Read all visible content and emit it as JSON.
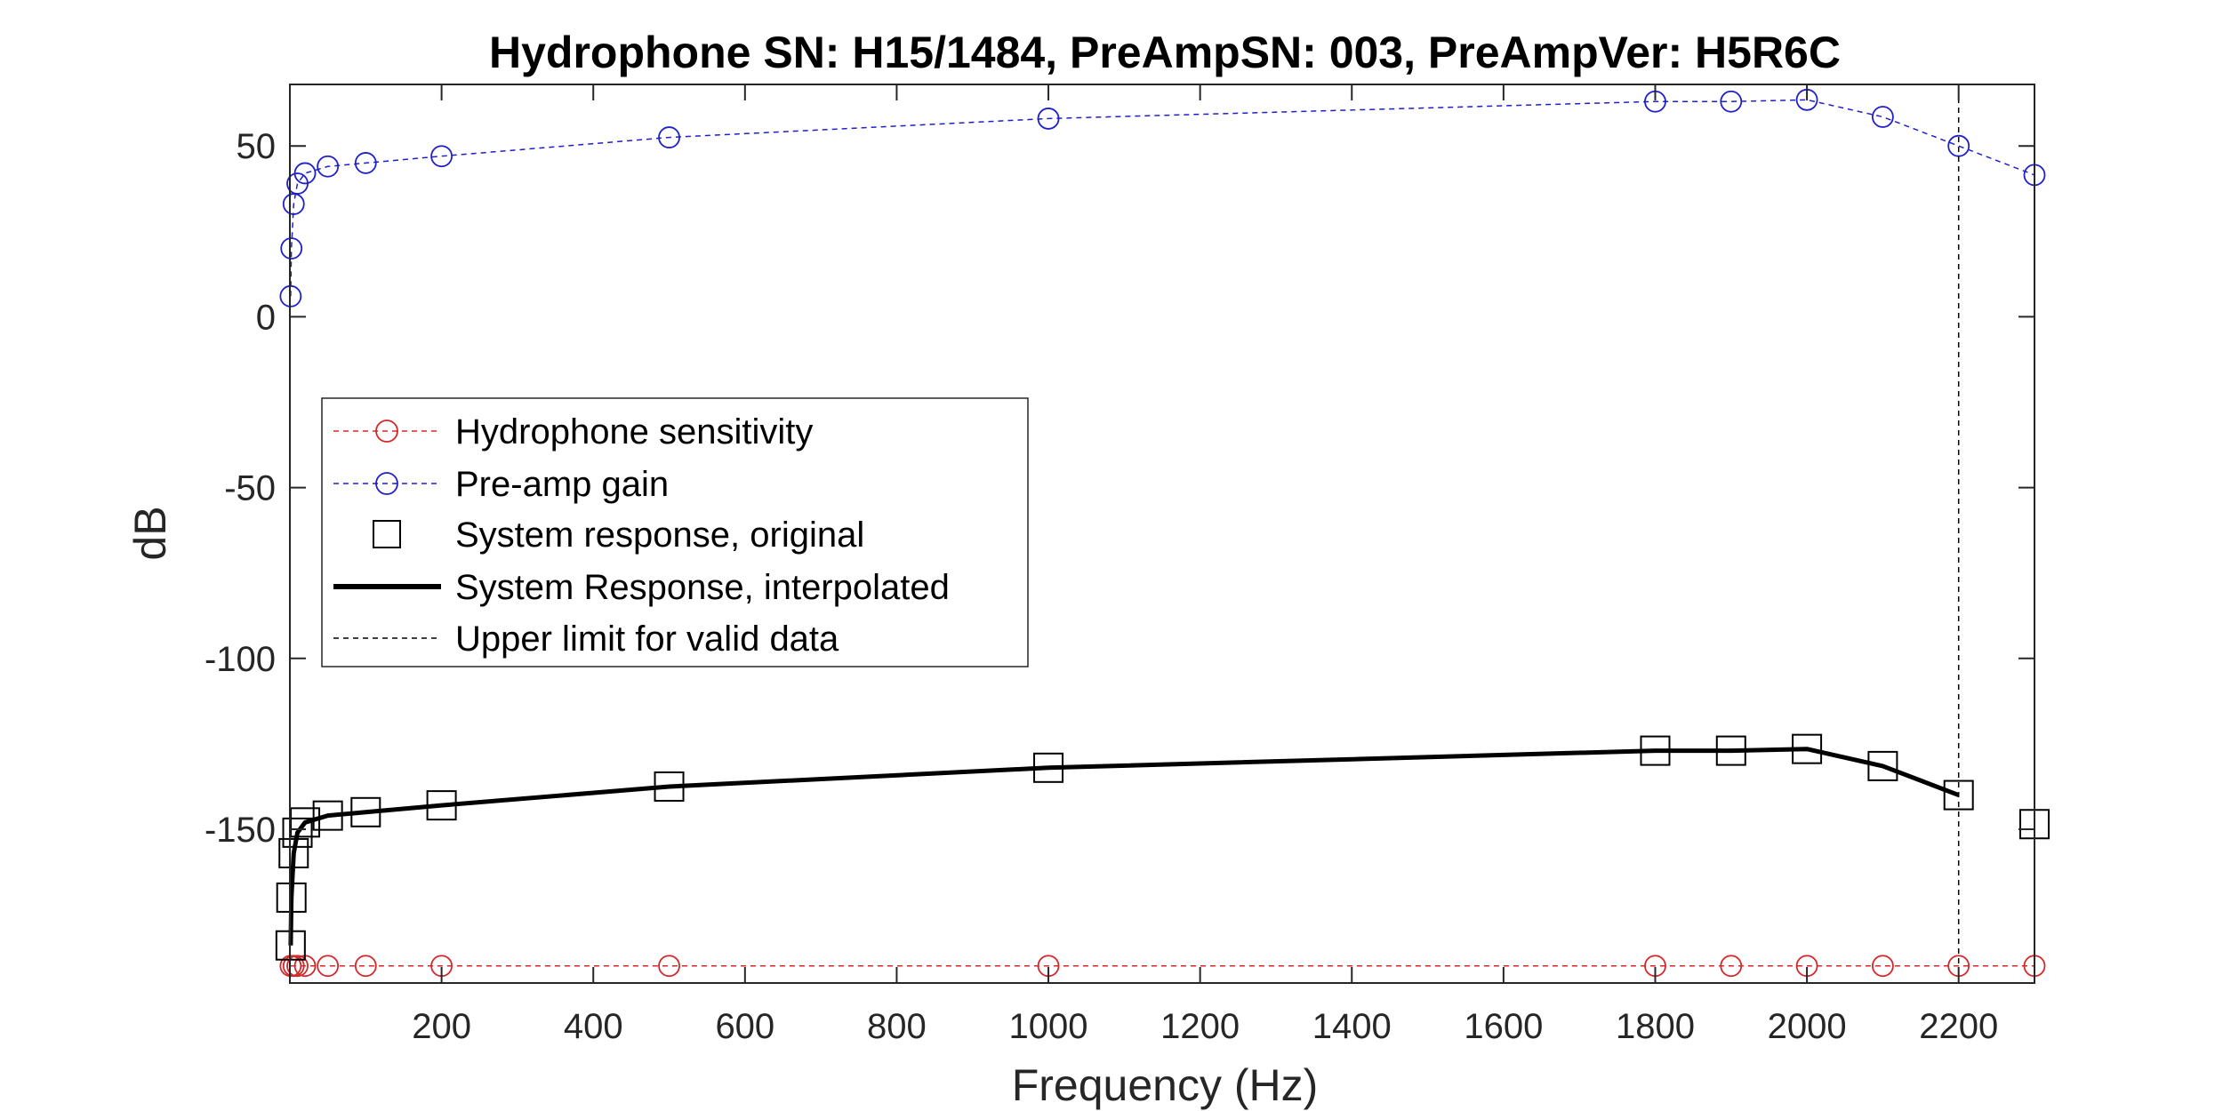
{
  "chart_data": {
    "type": "line",
    "title": "Hydrophone SN: H15/1484, PreAmpSN: 003, PreAmpVer: H5R6C",
    "xlabel": "Frequency (Hz)",
    "ylabel": "dB",
    "xlim": [
      0,
      2300
    ],
    "ylim": [
      -195,
      68
    ],
    "xticks": [
      200,
      400,
      600,
      800,
      1000,
      1200,
      1400,
      1600,
      1800,
      2000,
      2200
    ],
    "yticks": [
      50,
      0,
      -50,
      -100,
      -150
    ],
    "grid": false,
    "legend_position": "left",
    "colors": {
      "sensitivity": "#d62728",
      "preamp": "#1f1fcc",
      "system": "#000000",
      "limit": "#000000"
    },
    "series": [
      {
        "name": "Hydrophone sensitivity",
        "style": "dashed-circle",
        "x": [
          1,
          5,
          10,
          20,
          50,
          100,
          200,
          500,
          1000,
          1800,
          1900,
          2000,
          2100,
          2200,
          2300
        ],
        "y": [
          -190,
          -190,
          -190,
          -190,
          -190,
          -190,
          -190,
          -190,
          -190,
          -190,
          -190,
          -190,
          -190,
          -190,
          -190
        ]
      },
      {
        "name": "Pre-amp gain",
        "style": "dashed-circle",
        "x": [
          1,
          2,
          5,
          10,
          20,
          50,
          100,
          200,
          500,
          1000,
          1800,
          1900,
          2000,
          2100,
          2200,
          2300
        ],
        "y": [
          6,
          20,
          33,
          39,
          42,
          44,
          45,
          47,
          52.5,
          58,
          63,
          63,
          63.5,
          58.5,
          50,
          41.5
        ]
      },
      {
        "name": "System response, original",
        "style": "square",
        "x": [
          1,
          2,
          5,
          10,
          20,
          50,
          100,
          200,
          500,
          1000,
          1800,
          1900,
          2000,
          2100,
          2200,
          2300
        ],
        "y": [
          -184,
          -170,
          -157,
          -151,
          -148,
          -146,
          -145,
          -143,
          -137.5,
          -132,
          -127,
          -127,
          -126.5,
          -131.5,
          -140,
          -148.5
        ]
      },
      {
        "name": "System Response, interpolated",
        "style": "solid-thick",
        "x": [
          1,
          2,
          5,
          10,
          20,
          50,
          100,
          200,
          500,
          1000,
          1800,
          1900,
          2000,
          2100,
          2200
        ],
        "y": [
          -184,
          -170,
          -157,
          -151,
          -148,
          -146,
          -145,
          -143,
          -137.5,
          -132,
          -127,
          -127,
          -126.5,
          -131.5,
          -140
        ]
      },
      {
        "name": "Upper limit for valid data",
        "style": "dashed-vertical",
        "x": [
          2200,
          2200
        ],
        "y": [
          -195,
          68
        ]
      }
    ]
  }
}
